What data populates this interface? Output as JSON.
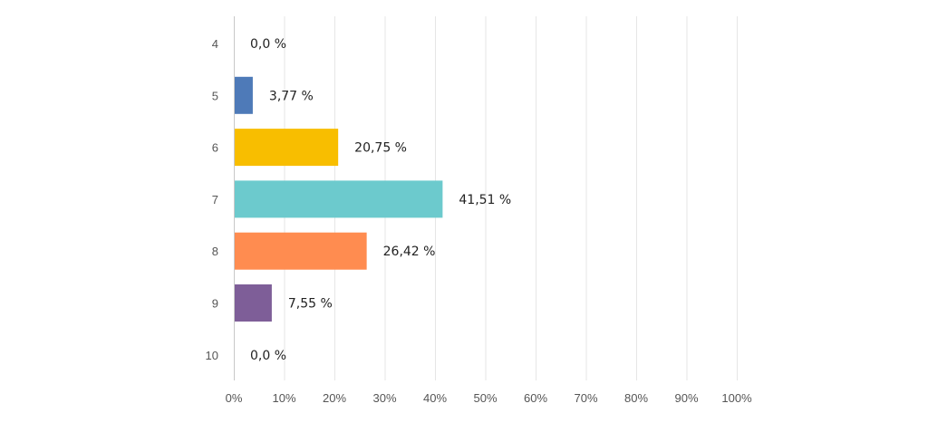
{
  "chart_data": {
    "type": "bar",
    "orientation": "horizontal",
    "categories": [
      "4",
      "5",
      "6",
      "7",
      "8",
      "9",
      "10"
    ],
    "values": [
      0.0,
      3.77,
      20.75,
      41.51,
      26.42,
      7.55,
      0.0
    ],
    "value_labels": [
      "0,0 %",
      "3,77 %",
      "20,75 %",
      "41,51 %",
      "26,42 %",
      "7,55 %",
      "0,0 %"
    ],
    "colors": [
      "#6aa7d8",
      "#4e7ab8",
      "#f8be00",
      "#6ccacd",
      "#ff8c50",
      "#7e5e98",
      "#6aa7d8"
    ],
    "xlim": [
      0,
      100
    ],
    "x_ticks": [
      0,
      10,
      20,
      30,
      40,
      50,
      60,
      70,
      80,
      90,
      100
    ],
    "x_tick_labels": [
      "0%",
      "10%",
      "20%",
      "30%",
      "40%",
      "50%",
      "60%",
      "70%",
      "80%",
      "90%",
      "100%"
    ],
    "grid": true,
    "title": "",
    "xlabel": "",
    "ylabel": ""
  }
}
